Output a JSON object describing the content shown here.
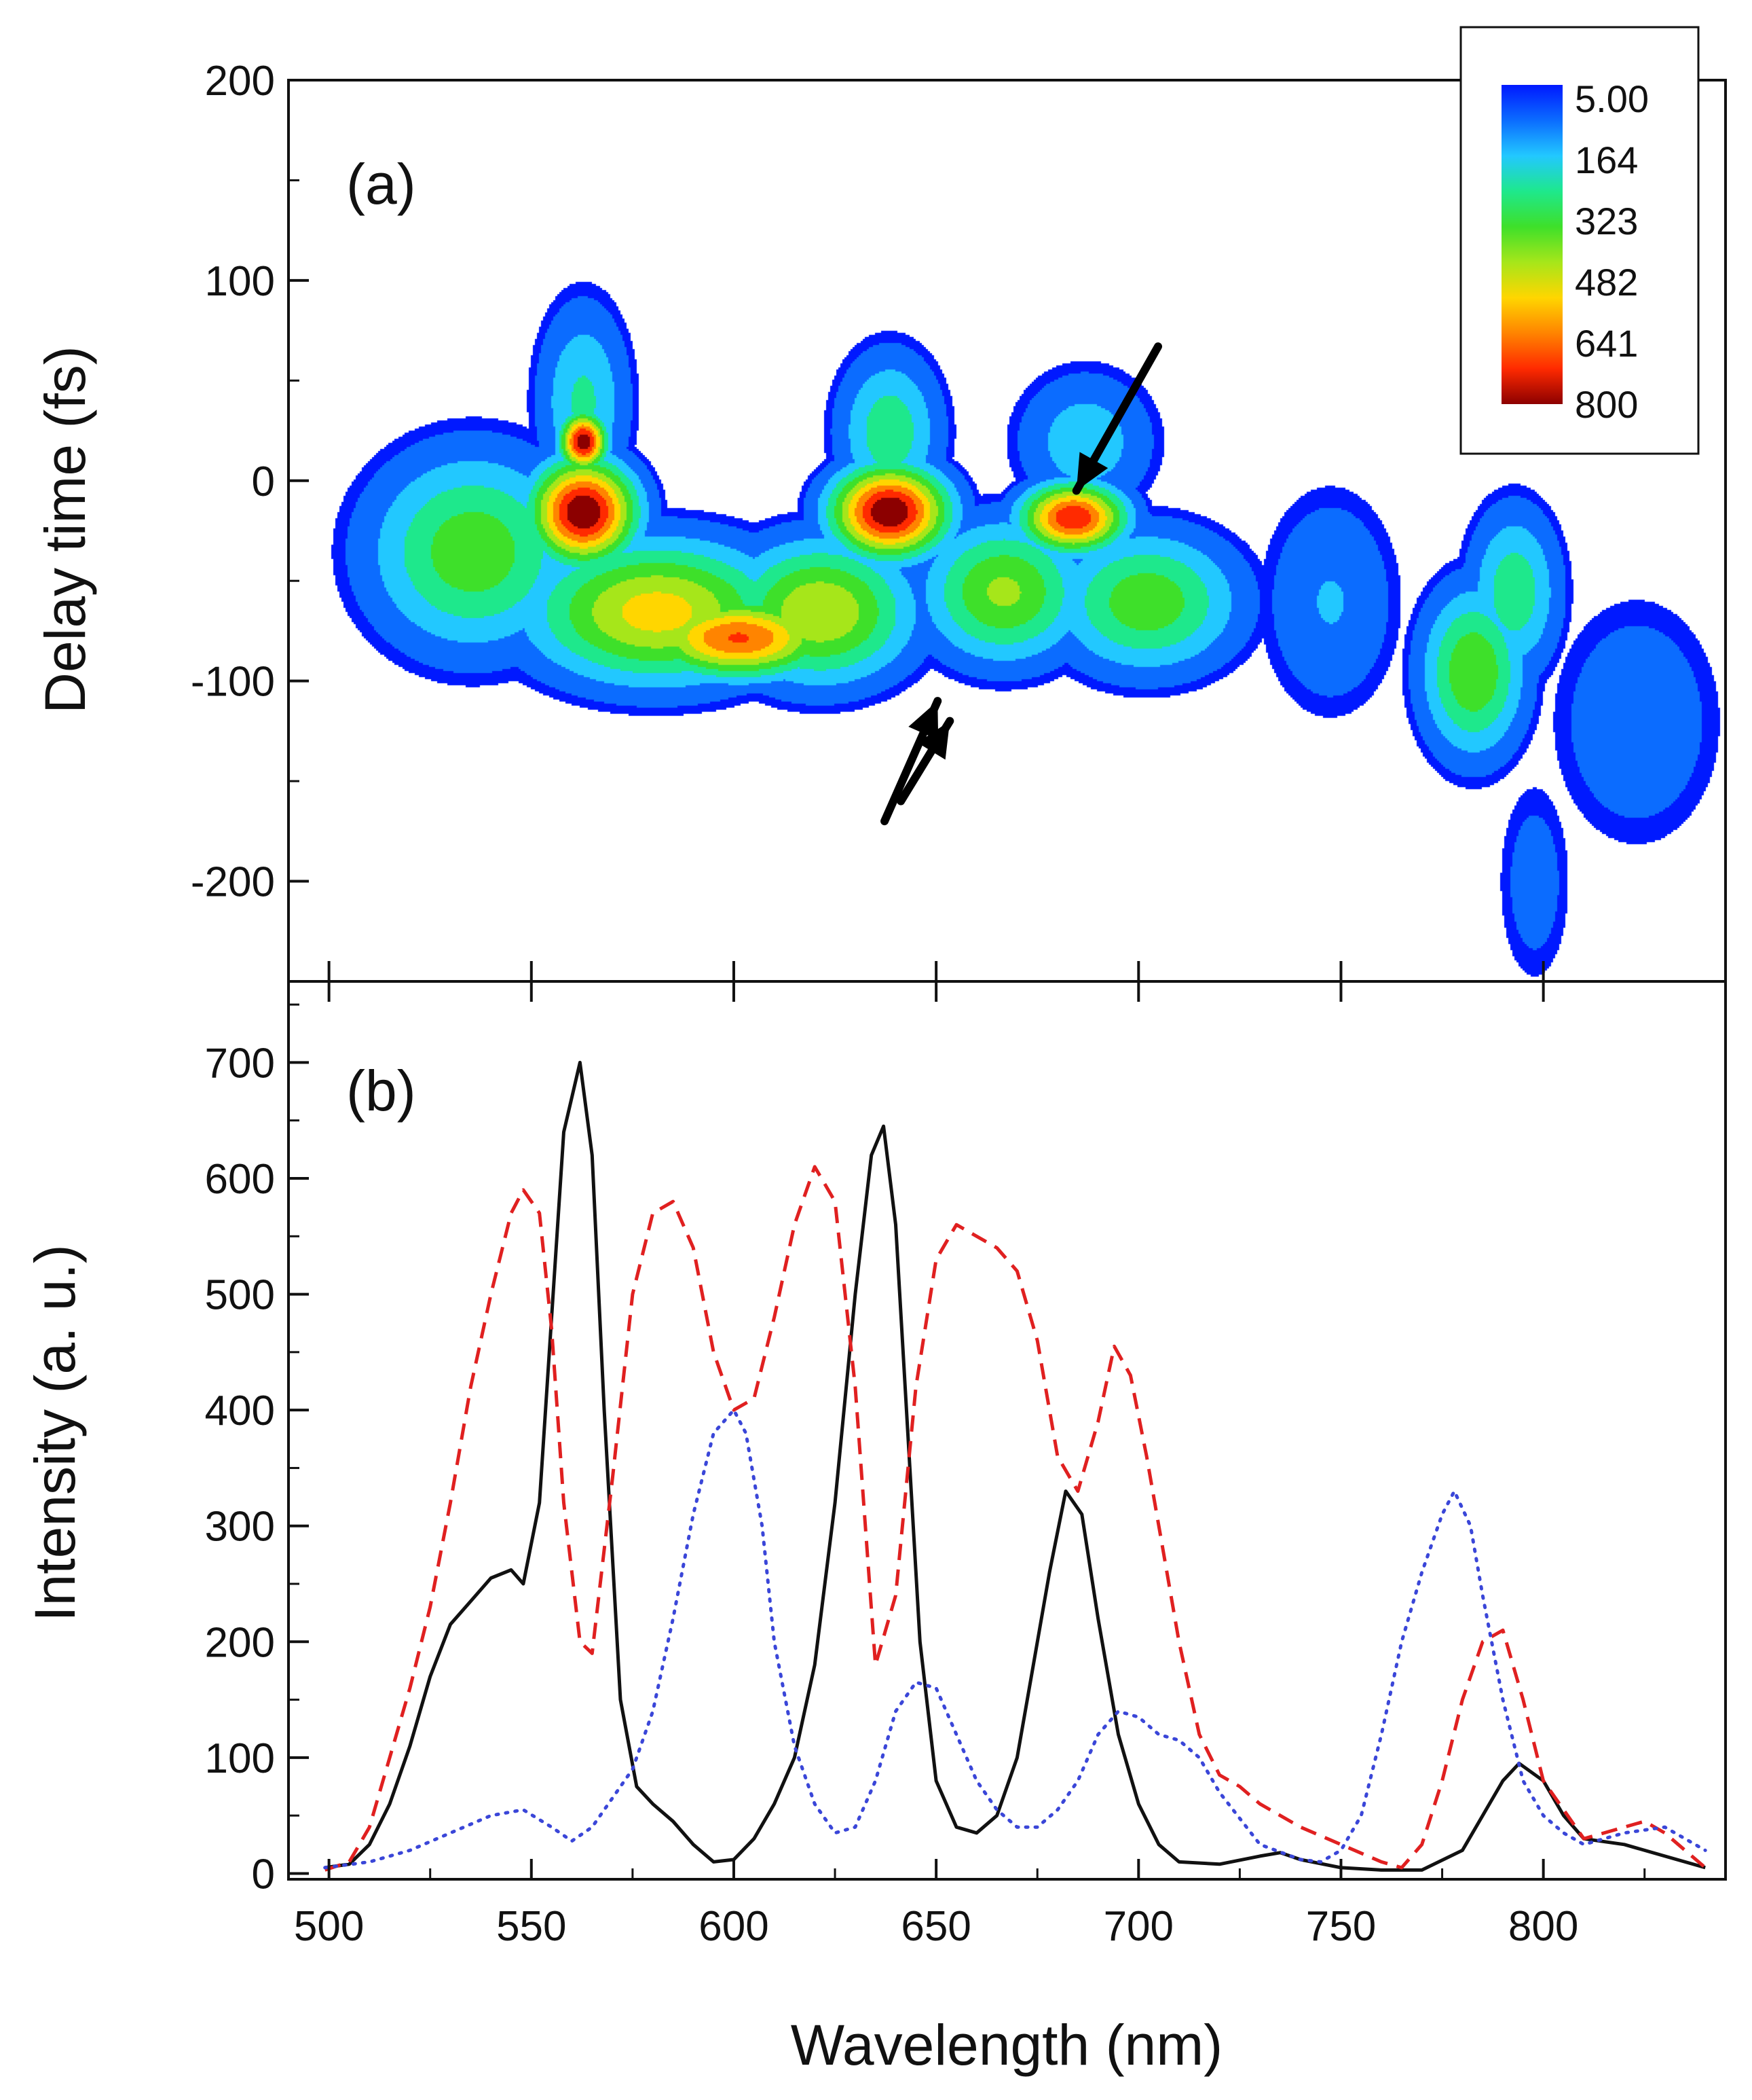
{
  "chart_data": [
    {
      "panel": "a",
      "type": "heatmap",
      "panel_label": "(a)",
      "xlabel": "",
      "ylabel": "Delay time (fs)",
      "xlim": [
        490,
        842
      ],
      "ylim": [
        -250,
        200
      ],
      "y_ticks": [
        200,
        100,
        0,
        -100,
        -200
      ],
      "y_tick_labels": [
        "200",
        "100",
        "0",
        "-100",
        "-200"
      ],
      "colorscale": {
        "labels": [
          "5.00",
          "164",
          "323",
          "482",
          "641",
          "800"
        ],
        "min": 5,
        "max": 800,
        "colors": [
          "#0019ff",
          "#0b6cff",
          "#22c8ff",
          "#1ee88c",
          "#3ee02a",
          "#a6e61a",
          "#ffd600",
          "#ff8400",
          "#ff2a00",
          "#8c0000"
        ]
      },
      "blobs": [
        {
          "x": 562,
          "y": -15,
          "sx": 9,
          "sy": 18,
          "value": 800
        },
        {
          "x": 562,
          "y": 20,
          "sx": 4,
          "sy": 10,
          "value": 780
        },
        {
          "x": 637,
          "y": -15,
          "sx": 10,
          "sy": 16,
          "value": 800
        },
        {
          "x": 682,
          "y": -18,
          "sx": 9,
          "sy": 12,
          "value": 720
        },
        {
          "x": 600,
          "y": -78,
          "sx": 16,
          "sy": 14,
          "value": 650
        },
        {
          "x": 580,
          "y": -65,
          "sx": 22,
          "sy": 25,
          "value": 520
        },
        {
          "x": 620,
          "y": -65,
          "sx": 16,
          "sy": 25,
          "value": 480
        },
        {
          "x": 535,
          "y": -35,
          "sx": 18,
          "sy": 35,
          "value": 380
        },
        {
          "x": 665,
          "y": -55,
          "sx": 14,
          "sy": 25,
          "value": 420
        },
        {
          "x": 700,
          "y": -60,
          "sx": 16,
          "sy": 25,
          "value": 380
        },
        {
          "x": 637,
          "y": 25,
          "sx": 9,
          "sy": 28,
          "value": 300
        },
        {
          "x": 562,
          "y": 40,
          "sx": 8,
          "sy": 35,
          "value": 260
        },
        {
          "x": 685,
          "y": 20,
          "sx": 12,
          "sy": 25,
          "value": 220
        },
        {
          "x": 780,
          "y": -95,
          "sx": 9,
          "sy": 30,
          "value": 400
        },
        {
          "x": 790,
          "y": -55,
          "sx": 8,
          "sy": 30,
          "value": 300
        },
        {
          "x": 745,
          "y": -60,
          "sx": 12,
          "sy": 40,
          "value": 170
        },
        {
          "x": 820,
          "y": -120,
          "sx": 15,
          "sy": 45,
          "value": 150
        },
        {
          "x": 795,
          "y": -200,
          "sx": 7,
          "sy": 40,
          "value": 120
        }
      ],
      "arrows": [
        {
          "from": [
            703,
            67
          ],
          "to": [
            683,
            -5
          ]
        },
        {
          "from": [
            636,
            -170
          ],
          "to": [
            649,
            -110
          ]
        },
        {
          "from": [
            640,
            -160
          ],
          "to": [
            652,
            -120
          ]
        }
      ]
    },
    {
      "panel": "b",
      "type": "line",
      "panel_label": "(b)",
      "xlabel": "Wavelength (nm)",
      "ylabel": "Intensity (a. u.)",
      "xlim": [
        490,
        845
      ],
      "ylim": [
        -5,
        770
      ],
      "x_ticks": [
        500,
        550,
        600,
        650,
        700,
        750,
        800
      ],
      "x_tick_labels": [
        "500",
        "550",
        "600",
        "650",
        "700",
        "750",
        "800"
      ],
      "y_ticks": [
        0,
        100,
        200,
        300,
        400,
        500,
        600,
        700
      ],
      "y_tick_labels": [
        "0",
        "100",
        "200",
        "300",
        "400",
        "500",
        "600",
        "700"
      ],
      "series": [
        {
          "name": "black solid",
          "color": "#111111",
          "style": "solid",
          "x": [
            499,
            505,
            510,
            515,
            520,
            525,
            530,
            535,
            540,
            545,
            548,
            552,
            555,
            558,
            562,
            565,
            568,
            572,
            576,
            580,
            585,
            590,
            595,
            600,
            605,
            610,
            615,
            620,
            625,
            630,
            634,
            637,
            640,
            643,
            646,
            650,
            655,
            660,
            665,
            670,
            674,
            678,
            682,
            686,
            690,
            695,
            700,
            705,
            710,
            720,
            730,
            735,
            740,
            750,
            760,
            770,
            780,
            785,
            790,
            794,
            800,
            805,
            810,
            820,
            830,
            840
          ],
          "y": [
            5,
            8,
            25,
            60,
            110,
            170,
            215,
            235,
            255,
            262,
            250,
            320,
            480,
            640,
            700,
            620,
            400,
            150,
            75,
            60,
            45,
            25,
            10,
            12,
            30,
            60,
            100,
            180,
            320,
            500,
            620,
            645,
            560,
            380,
            200,
            80,
            40,
            35,
            50,
            100,
            180,
            260,
            330,
            310,
            220,
            120,
            60,
            25,
            10,
            8,
            15,
            18,
            12,
            5,
            3,
            3,
            20,
            50,
            80,
            95,
            80,
            50,
            30,
            25,
            15,
            5
          ]
        },
        {
          "name": "red dashed",
          "color": "#e02020",
          "style": "dashed",
          "x": [
            499,
            505,
            510,
            515,
            520,
            525,
            530,
            535,
            540,
            545,
            548,
            552,
            555,
            558,
            562,
            565,
            570,
            575,
            580,
            585,
            590,
            595,
            600,
            605,
            610,
            615,
            620,
            625,
            630,
            635,
            640,
            645,
            650,
            655,
            660,
            665,
            670,
            675,
            680,
            685,
            690,
            694,
            698,
            702,
            706,
            710,
            715,
            720,
            725,
            730,
            740,
            750,
            760,
            765,
            770,
            775,
            780,
            785,
            790,
            795,
            800,
            810,
            820,
            825,
            830,
            840
          ],
          "y": [
            3,
            10,
            40,
            100,
            160,
            230,
            320,
            420,
            500,
            570,
            590,
            570,
            470,
            320,
            200,
            190,
            340,
            500,
            570,
            580,
            540,
            450,
            400,
            410,
            480,
            560,
            610,
            580,
            420,
            180,
            240,
            420,
            530,
            560,
            550,
            540,
            520,
            460,
            360,
            330,
            390,
            455,
            430,
            360,
            280,
            200,
            120,
            85,
            75,
            60,
            40,
            25,
            10,
            5,
            25,
            80,
            150,
            200,
            210,
            150,
            80,
            30,
            40,
            45,
            35,
            5
          ]
        },
        {
          "name": "blue dotted",
          "color": "#3a46d8",
          "style": "dotted",
          "x": [
            499,
            510,
            520,
            530,
            540,
            548,
            555,
            560,
            565,
            570,
            575,
            580,
            585,
            590,
            595,
            600,
            603,
            607,
            610,
            615,
            620,
            625,
            630,
            635,
            640,
            645,
            650,
            655,
            660,
            665,
            670,
            675,
            680,
            685,
            690,
            695,
            700,
            705,
            710,
            715,
            720,
            730,
            740,
            745,
            750,
            755,
            760,
            765,
            770,
            775,
            778,
            782,
            785,
            790,
            795,
            800,
            805,
            810,
            820,
            830,
            840
          ],
          "y": [
            5,
            10,
            20,
            35,
            50,
            55,
            40,
            28,
            40,
            65,
            90,
            140,
            220,
            310,
            380,
            400,
            380,
            300,
            200,
            110,
            60,
            35,
            40,
            80,
            140,
            165,
            160,
            120,
            80,
            55,
            40,
            40,
            55,
            80,
            120,
            140,
            135,
            120,
            115,
            100,
            70,
            25,
            12,
            10,
            20,
            50,
            120,
            200,
            260,
            310,
            330,
            300,
            240,
            150,
            80,
            50,
            35,
            25,
            35,
            40,
            20
          ]
        }
      ]
    }
  ]
}
